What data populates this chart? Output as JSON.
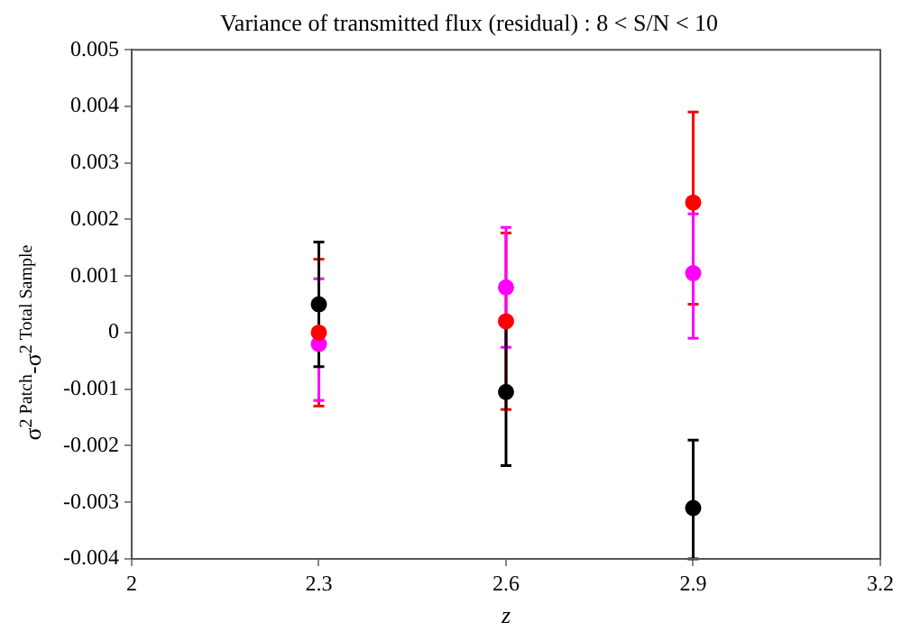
{
  "chart_data": {
    "type": "scatter",
    "title": "Variance of transmitted flux (residual) : 8 < S/N < 10",
    "xlabel": "z",
    "ylabel": "σ$^{2 Patch}$-σ$^{2 Total Sample}$",
    "series": [
      {
        "color": "#ff0000",
        "x": [
          2.3,
          2.6,
          2.9
        ],
        "values": [
          0.0,
          0.0002,
          0.0023
        ],
        "errors": [
          0.0013,
          0.00156,
          [
            0.0005,
            0.0039
          ]
        ]
      },
      {
        "color": "#ff00ff",
        "x": [
          2.3,
          2.6,
          2.9
        ],
        "values": [
          -0.0002,
          0.0008,
          0.00105
        ],
        "errors": [
          [
            -0.0012,
            0.00095
          ],
          0.00106,
          [
            -0.0001,
            0.0021
          ]
        ]
      },
      {
        "color": "#000000",
        "x": [
          2.3,
          2.6,
          2.9
        ],
        "values": [
          0.0005,
          -0.00105,
          -0.0031
        ],
        "errors": [
          0.0011,
          0.0013,
          [
            -0.004,
            -0.0019
          ]
        ]
      }
    ],
    "xlim": [
      2,
      3.2
    ],
    "xticks": [
      2,
      2.3,
      2.6,
      2.9,
      3.2
    ],
    "ylim": [
      -0.004,
      0.005
    ],
    "yticks": [
      -0.004,
      -0.003,
      -0.002,
      -0.001,
      0,
      0.001,
      0.002,
      0.003,
      0.004,
      0.005
    ],
    "grid": false,
    "legend": false,
    "marker": "circle"
  }
}
